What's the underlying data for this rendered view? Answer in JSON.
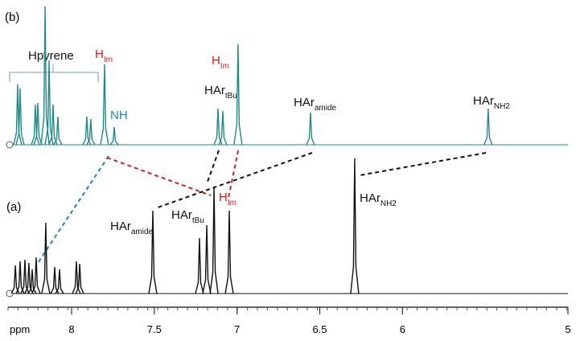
{
  "chart_data": {
    "type": "nmr",
    "x_label": "ppm",
    "xlim": [
      8.384,
      5
    ],
    "xticks": [
      8,
      7.5,
      7,
      6.5,
      6,
      5
    ],
    "spectra": [
      {
        "name": "(b)",
        "color": "#1f8a86",
        "x": [
          8.326,
          8.311,
          8.219,
          8.204,
          8.16,
          8.136,
          8.112,
          8.083,
          7.908,
          7.884,
          7.801,
          7.742,
          7.115,
          7.086,
          6.994,
          6.556,
          5.482
        ],
        "values": [
          75,
          70,
          50,
          52,
          172,
          105,
          50,
          35,
          35,
          32,
          100,
          22,
          45,
          42,
          125,
          40,
          45
        ]
      },
      {
        "name": "(a)",
        "color": "#111111",
        "x": [
          8.34,
          8.311,
          8.282,
          8.258,
          8.238,
          8.214,
          8.156,
          8.102,
          8.073,
          7.971,
          7.951,
          7.509,
          7.227,
          7.183,
          7.139,
          7.047,
          6.289
        ],
        "values": [
          35,
          40,
          42,
          38,
          30,
          45,
          88,
          33,
          30,
          40,
          37,
          103,
          69,
          85,
          133,
          103,
          168
        ]
      }
    ],
    "annotations": [
      {
        "text": "Hpyrene",
        "color": "#111111"
      },
      {
        "text": "H",
        "sub": "Im",
        "color": "#d62020"
      },
      {
        "text": "NH",
        "color": "#1a8ab0"
      },
      {
        "text": "H",
        "sub": "Im",
        "color": "#d62020"
      },
      {
        "text": "HAr",
        "sub": "tBu",
        "color": "#111111"
      },
      {
        "text": "HAr",
        "sub": "amide",
        "color": "#111111"
      },
      {
        "text": "HAr",
        "sub": "NH2",
        "color": "#111111"
      },
      {
        "text": "HAr",
        "sub": "amide",
        "color": "#111111"
      },
      {
        "text": "HAr",
        "sub": "tBu",
        "color": "#111111"
      },
      {
        "text": "H",
        "sub": "Im",
        "color": "#d62020"
      },
      {
        "text": "HAr",
        "sub": "NH2",
        "color": "#111111"
      }
    ]
  }
}
